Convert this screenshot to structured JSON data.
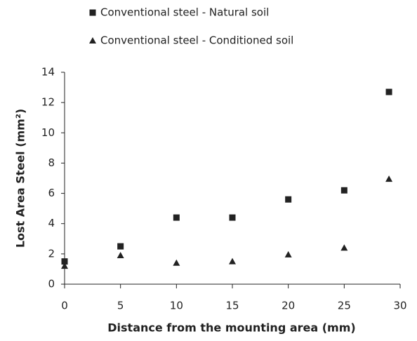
{
  "chart_data": {
    "type": "scatter",
    "xlabel": "Distance from the mounting area (mm)",
    "ylabel": "Lost Area Steel (mm²)",
    "series": [
      {
        "name": "Conventional steel - Natural soil",
        "marker": "square",
        "color": "#222222",
        "x": [
          0,
          5,
          10,
          15,
          20,
          25,
          29
        ],
        "values": [
          1.5,
          2.5,
          4.4,
          4.4,
          5.6,
          6.2,
          12.7
        ]
      },
      {
        "name": "Conventional steel - Conditioned soil",
        "marker": "triangle",
        "color": "#222222",
        "x": [
          0,
          5,
          10,
          15,
          20,
          25,
          29
        ],
        "values": [
          1.2,
          1.9,
          1.4,
          1.5,
          1.95,
          2.4,
          6.95
        ]
      }
    ],
    "xlim": [
      0,
      30
    ],
    "xticks": [
      0,
      5,
      10,
      15,
      20,
      25,
      30
    ],
    "ylim": [
      0,
      14
    ],
    "yticks": [
      0,
      2,
      4,
      6,
      8,
      10,
      12,
      14
    ],
    "grid": false,
    "legend": "top"
  }
}
